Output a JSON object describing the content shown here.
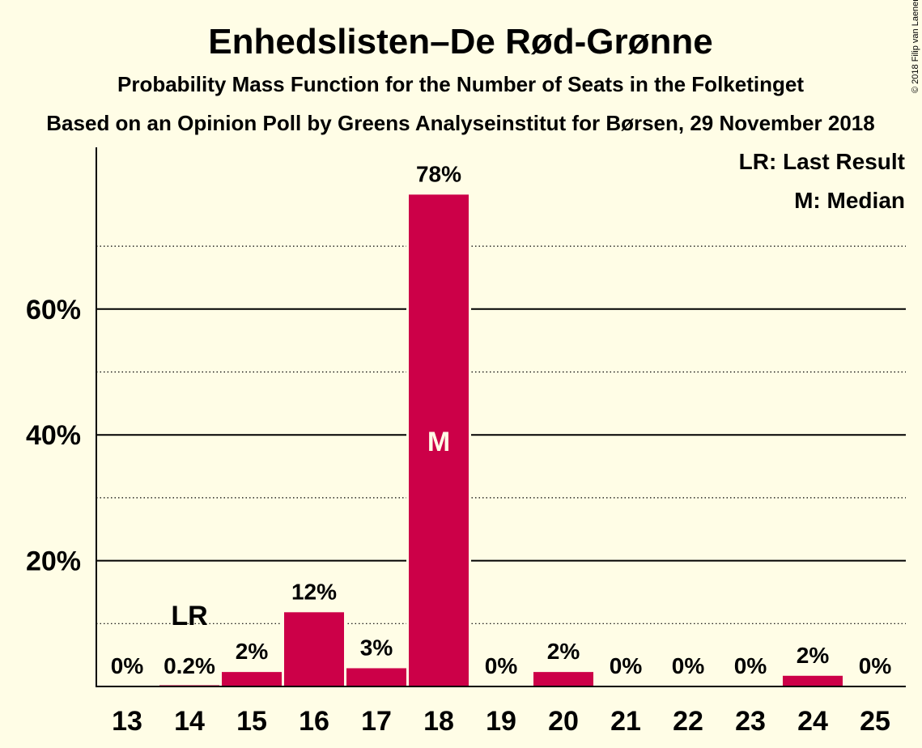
{
  "chart_data": {
    "type": "bar",
    "title": "Enhedslisten–De Rød-Grønne",
    "subtitle": "Probability Mass Function for the Number of Seats in the Folketinget",
    "subtitle2": "Based on an Opinion Poll by Greens Analyseinstitut for Børsen, 29 November 2018",
    "copyright": "© 2018 Filip van Laenen",
    "categories": [
      "13",
      "14",
      "15",
      "16",
      "17",
      "18",
      "19",
      "20",
      "21",
      "22",
      "23",
      "24",
      "25"
    ],
    "values": [
      0,
      0.2,
      2.3,
      11.8,
      2.9,
      78.2,
      0,
      2.3,
      0,
      0,
      0,
      1.7,
      0
    ],
    "labels": [
      "0%",
      "0.2%",
      "2%",
      "12%",
      "3%",
      "78%",
      "0%",
      "2%",
      "0%",
      "0%",
      "0%",
      "2%",
      "0%"
    ],
    "ylim": [
      0,
      85
    ],
    "yticks": [
      20,
      40,
      60
    ],
    "ytick_labels": [
      "20%",
      "40%",
      "60%"
    ],
    "minor_gridlines": [
      10,
      30,
      50,
      70
    ],
    "last_result_index": 1,
    "last_result_marker": "LR",
    "median_index": 5,
    "median_marker": "M",
    "legend": [
      "LR: Last Result",
      "M: Median"
    ],
    "legend_position": "top-right",
    "bar_color": "#CC0048"
  }
}
